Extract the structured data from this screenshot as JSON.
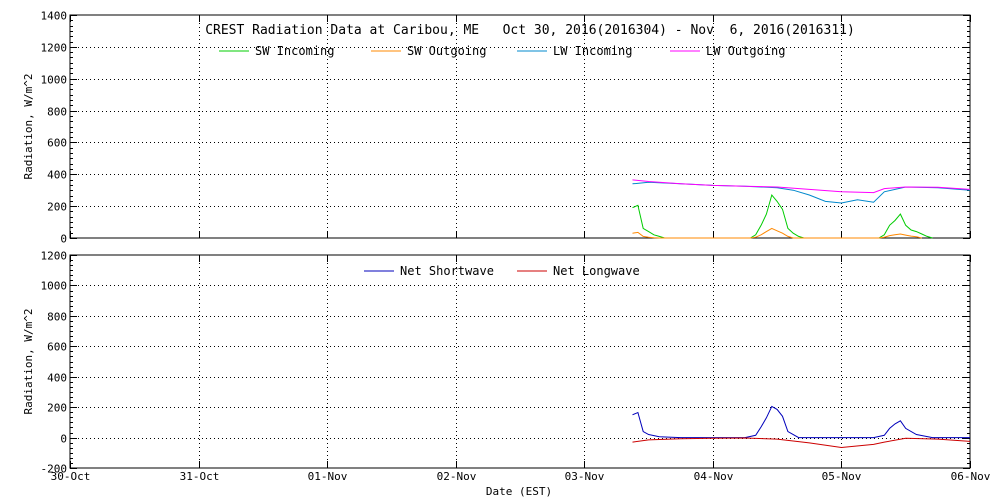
{
  "chart_data": [
    {
      "type": "line",
      "title": "CREST Radiation Data at Caribou, ME   Oct 30, 2016(2016304) - Nov  6, 2016(2016311)",
      "xlabel": "",
      "ylabel": "Radiation, W/m^2",
      "xlim": [
        "2016-10-30",
        "2016-11-06"
      ],
      "ylim": [
        0,
        1400
      ],
      "yticks": [
        0,
        200,
        400,
        600,
        800,
        1000,
        1200,
        1400
      ],
      "xticks": [
        "30-Oct",
        "31-Oct",
        "01-Nov",
        "02-Nov",
        "03-Nov",
        "04-Nov",
        "05-Nov",
        "06-Nov"
      ],
      "grid": true,
      "legend": "top",
      "colors": {
        "sw_in": "#00cc00",
        "sw_out": "#ff8800",
        "lw_in": "#0088cc",
        "lw_out": "#ff00ff"
      },
      "series": [
        {
          "name": "SW Incoming",
          "key": "sw_in",
          "x": [
            "2016-11-03 09:00",
            "2016-11-03 10:00",
            "2016-11-03 11:00",
            "2016-11-03 12:00",
            "2016-11-03 13:00",
            "2016-11-03 14:00",
            "2016-11-03 15:00",
            "2016-11-03 16:00",
            "2016-11-03 17:00",
            "2016-11-04 07:00",
            "2016-11-04 08:00",
            "2016-11-04 09:00",
            "2016-11-04 10:00",
            "2016-11-04 11:00",
            "2016-11-04 12:00",
            "2016-11-04 13:00",
            "2016-11-04 14:00",
            "2016-11-04 15:00",
            "2016-11-04 16:00",
            "2016-11-04 17:00",
            "2016-11-05 07:00",
            "2016-11-05 08:00",
            "2016-11-05 09:00",
            "2016-11-05 10:00",
            "2016-11-05 11:00",
            "2016-11-05 12:00",
            "2016-11-05 13:00",
            "2016-11-05 14:00",
            "2016-11-05 15:00",
            "2016-11-05 16:00",
            "2016-11-05 17:00"
          ],
          "y": [
            190,
            205,
            60,
            40,
            20,
            10,
            0,
            0,
            0,
            0,
            20,
            80,
            150,
            270,
            230,
            180,
            60,
            30,
            10,
            0,
            0,
            20,
            80,
            110,
            150,
            80,
            50,
            40,
            25,
            10,
            0
          ]
        },
        {
          "name": "SW Outgoing",
          "key": "sw_out",
          "x": [
            "2016-11-03 09:00",
            "2016-11-03 10:00",
            "2016-11-03 11:00",
            "2016-11-03 12:00",
            "2016-11-03 13:00",
            "2016-11-03 14:00",
            "2016-11-04 07:00",
            "2016-11-04 08:00",
            "2016-11-04 09:00",
            "2016-11-04 10:00",
            "2016-11-04 11:00",
            "2016-11-04 12:00",
            "2016-11-04 13:00",
            "2016-11-04 14:00",
            "2016-11-04 15:00",
            "2016-11-05 07:00",
            "2016-11-05 08:00",
            "2016-11-05 09:00",
            "2016-11-05 10:00",
            "2016-11-05 11:00",
            "2016-11-05 12:00",
            "2016-11-05 13:00",
            "2016-11-05 14:00",
            "2016-11-05 15:00"
          ],
          "y": [
            30,
            35,
            10,
            5,
            2,
            0,
            0,
            5,
            20,
            40,
            60,
            45,
            30,
            10,
            0,
            0,
            5,
            15,
            20,
            25,
            18,
            12,
            8,
            0
          ]
        },
        {
          "name": "LW Incoming",
          "key": "lw_in",
          "x": [
            "2016-11-03 09:00",
            "2016-11-03 12:00",
            "2016-11-03 18:00",
            "2016-11-04 00:00",
            "2016-11-04 06:00",
            "2016-11-04 12:00",
            "2016-11-04 15:00",
            "2016-11-04 18:00",
            "2016-11-04 21:00",
            "2016-11-05 00:00",
            "2016-11-05 03:00",
            "2016-11-05 06:00",
            "2016-11-05 08:00",
            "2016-11-05 12:00",
            "2016-11-05 18:00",
            "2016-11-06 00:00"
          ],
          "y": [
            340,
            350,
            340,
            330,
            325,
            315,
            300,
            270,
            230,
            220,
            240,
            225,
            290,
            320,
            315,
            300
          ]
        },
        {
          "name": "LW Outgoing",
          "key": "lw_out",
          "x": [
            "2016-11-03 09:00",
            "2016-11-03 12:00",
            "2016-11-03 18:00",
            "2016-11-04 00:00",
            "2016-11-04 06:00",
            "2016-11-04 12:00",
            "2016-11-04 18:00",
            "2016-11-05 00:00",
            "2016-11-05 06:00",
            "2016-11-05 08:00",
            "2016-11-05 12:00",
            "2016-11-05 18:00",
            "2016-11-06 00:00"
          ],
          "y": [
            365,
            355,
            340,
            330,
            325,
            320,
            305,
            290,
            285,
            310,
            320,
            318,
            305
          ]
        }
      ]
    },
    {
      "type": "line",
      "title": "",
      "xlabel": "Date (EST)",
      "ylabel": "Radiation, W/m^2",
      "xlim": [
        "2016-10-30",
        "2016-11-06"
      ],
      "ylim": [
        -200,
        1200
      ],
      "yticks": [
        -200,
        0,
        200,
        400,
        600,
        800,
        1000,
        1200
      ],
      "xticks": [
        "30-Oct",
        "31-Oct",
        "01-Nov",
        "02-Nov",
        "03-Nov",
        "04-Nov",
        "05-Nov",
        "06-Nov"
      ],
      "grid": true,
      "legend": "top",
      "colors": {
        "net_sw": "#0000bb",
        "net_lw": "#cc0000"
      },
      "series": [
        {
          "name": "Net Shortwave",
          "key": "net_sw",
          "x": [
            "2016-11-03 09:00",
            "2016-11-03 10:00",
            "2016-11-03 11:00",
            "2016-11-03 12:00",
            "2016-11-03 14:00",
            "2016-11-03 18:00",
            "2016-11-04 06:00",
            "2016-11-04 08:00",
            "2016-11-04 09:00",
            "2016-11-04 10:00",
            "2016-11-04 11:00",
            "2016-11-04 12:00",
            "2016-11-04 13:00",
            "2016-11-04 14:00",
            "2016-11-04 16:00",
            "2016-11-05 06:00",
            "2016-11-05 08:00",
            "2016-11-05 09:00",
            "2016-11-05 10:00",
            "2016-11-05 11:00",
            "2016-11-05 12:00",
            "2016-11-05 14:00",
            "2016-11-05 17:00",
            "2016-11-06 00:00"
          ],
          "y": [
            150,
            165,
            40,
            20,
            5,
            0,
            0,
            15,
            70,
            130,
            205,
            185,
            140,
            40,
            0,
            0,
            15,
            60,
            90,
            110,
            60,
            20,
            0,
            0
          ]
        },
        {
          "name": "Net Longwave",
          "key": "net_lw",
          "x": [
            "2016-11-03 09:00",
            "2016-11-03 12:00",
            "2016-11-03 18:00",
            "2016-11-04 00:00",
            "2016-11-04 06:00",
            "2016-11-04 12:00",
            "2016-11-04 18:00",
            "2016-11-05 00:00",
            "2016-11-05 06:00",
            "2016-11-05 08:00",
            "2016-11-05 12:00",
            "2016-11-05 18:00",
            "2016-11-06 00:00"
          ],
          "y": [
            -30,
            -15,
            -8,
            -5,
            -3,
            -10,
            -35,
            -65,
            -45,
            -30,
            -5,
            -10,
            -25
          ]
        }
      ]
    }
  ]
}
